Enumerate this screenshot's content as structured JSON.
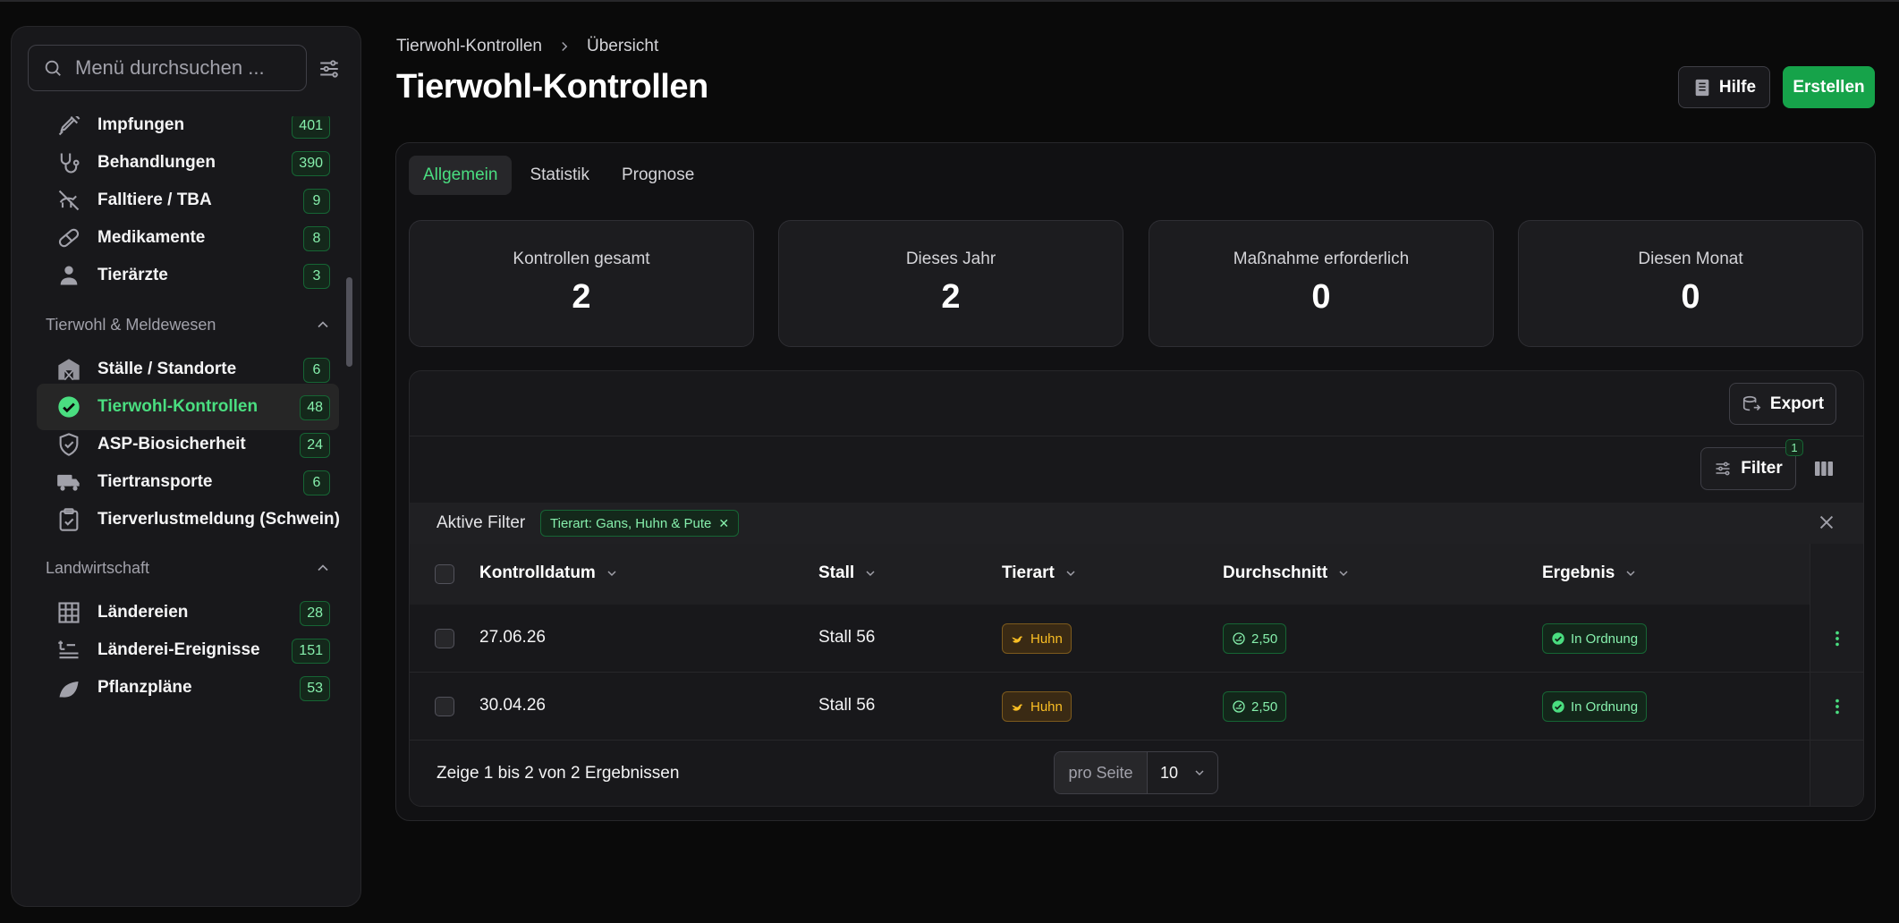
{
  "colors": {
    "accent": "#4ade80",
    "primary_button": "#16a34a",
    "warning": "#fbbf24"
  },
  "sidebar": {
    "search_placeholder": "Menü durchsuchen ...",
    "items_top": [
      {
        "label": "Impfungen",
        "count": "401",
        "icon": "syringe-icon"
      },
      {
        "label": "Behandlungen",
        "count": "390",
        "icon": "stethoscope-icon"
      },
      {
        "label": "Falltiere / TBA",
        "count": "9",
        "icon": "dead-animal-icon"
      },
      {
        "label": "Medikamente",
        "count": "8",
        "icon": "pill-icon"
      },
      {
        "label": "Tierärzte",
        "count": "3",
        "icon": "doctor-icon"
      }
    ],
    "section_tierwohl": "Tierwohl & Meldewesen",
    "items_tierwohl": [
      {
        "label": "Ställe / Standorte",
        "count": "6",
        "icon": "barn-icon"
      },
      {
        "label": "Tierwohl-Kontrollen",
        "count": "48",
        "icon": "check-circle-icon",
        "active": true
      },
      {
        "label": "ASP-Biosicherheit",
        "count": "24",
        "icon": "shield-icon"
      },
      {
        "label": "Tiertransporte",
        "count": "6",
        "icon": "truck-icon"
      },
      {
        "label": "Tierverlustmeldung (Schwein)",
        "count": "",
        "icon": "clipboard-check-icon"
      }
    ],
    "section_landwirtschaft": "Landwirtschaft",
    "items_land": [
      {
        "label": "Ländereien",
        "count": "28",
        "icon": "grid-icon"
      },
      {
        "label": "Länderei-Ereignisse",
        "count": "151",
        "icon": "field-event-icon"
      },
      {
        "label": "Pflanzpläne",
        "count": "53",
        "icon": "leaf-icon"
      }
    ]
  },
  "header": {
    "breadcrumb": [
      "Tierwohl-Kontrollen",
      "Übersicht"
    ],
    "title": "Tierwohl-Kontrollen",
    "help_label": "Hilfe",
    "create_label": "Erstellen"
  },
  "tabs": [
    "Allgemein",
    "Statistik",
    "Prognose"
  ],
  "stats": [
    {
      "label": "Kontrollen gesamt",
      "value": "2"
    },
    {
      "label": "Dieses Jahr",
      "value": "2"
    },
    {
      "label": "Maßnahme erforderlich",
      "value": "0"
    },
    {
      "label": "Diesen Monat",
      "value": "0"
    }
  ],
  "table": {
    "export_label": "Export",
    "filter_label": "Filter",
    "filter_count": "1",
    "active_filter_label": "Aktive Filter",
    "active_filter_chip": "Tierart: Gans, Huhn & Pute",
    "columns": [
      "Kontrolldatum",
      "Stall",
      "Tierart",
      "Durchschnitt",
      "Ergebnis"
    ],
    "rows": [
      {
        "date": "27.06.26",
        "stall": "Stall 56",
        "tierart": "Huhn",
        "durchschnitt": "2,50",
        "ergebnis": "In Ordnung"
      },
      {
        "date": "30.04.26",
        "stall": "Stall 56",
        "tierart": "Huhn",
        "durchschnitt": "2,50",
        "ergebnis": "In Ordnung"
      }
    ],
    "footer_text": "Zeige 1 bis 2 von 2 Ergebnissen",
    "per_page_label": "pro Seite",
    "per_page_value": "10"
  }
}
